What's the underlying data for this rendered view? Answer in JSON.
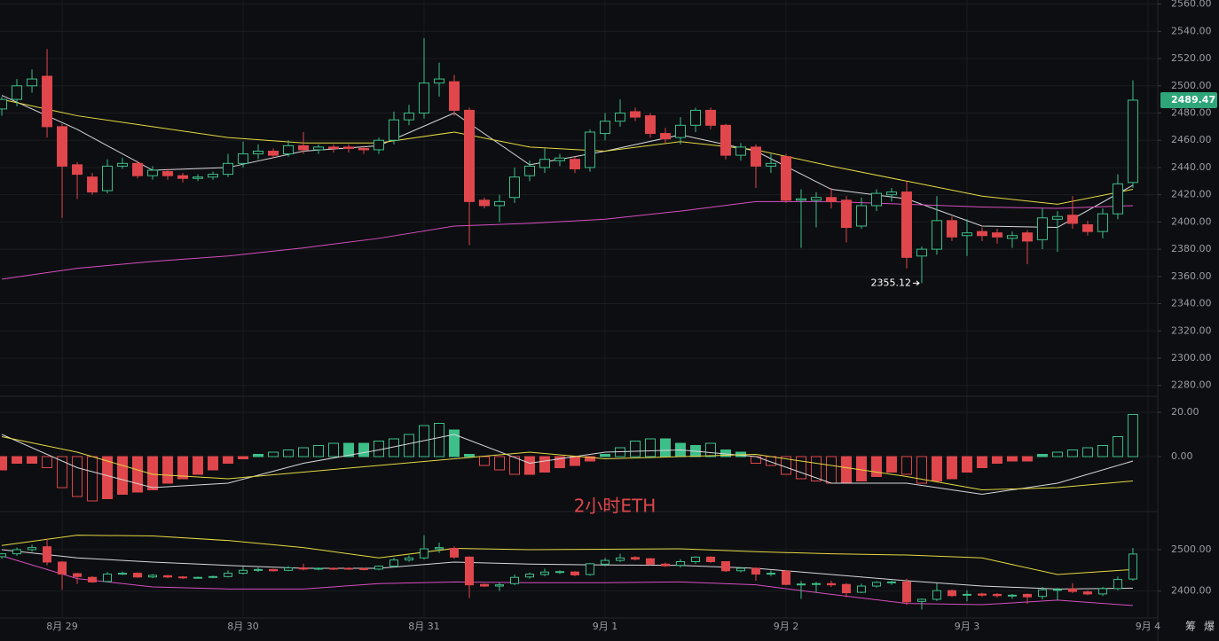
{
  "chart_data": {
    "type": "candlestick",
    "up_color": "#3dbf8a",
    "down_color": "#e0474c",
    "open": [
      2483,
      2490,
      2500,
      2507,
      2470,
      2442,
      2433,
      2423,
      2441,
      2443,
      2434,
      2437,
      2434,
      2432,
      2433,
      2435,
      2443,
      2450,
      2452,
      2450,
      2456,
      2453,
      2455,
      2455,
      2454,
      2453,
      2460,
      2475,
      2480,
      2502,
      2503,
      2482,
      2416,
      2412,
      2418,
      2434,
      2440,
      2445,
      2446,
      2440,
      2465,
      2474,
      2481,
      2478,
      2465,
      2462,
      2471,
      2482,
      2471,
      2449,
      2455,
      2441,
      2448,
      2416,
      2416,
      2418,
      2416,
      2397,
      2412,
      2420,
      2422,
      2375,
      2380,
      2401,
      2390,
      2393,
      2392,
      2388,
      2392,
      2387,
      2402,
      2405,
      2398,
      2393,
      2406,
      2429
    ],
    "high": [
      2492,
      2505,
      2512,
      2527,
      2472,
      2444,
      2436,
      2446,
      2447,
      2445,
      2441,
      2439,
      2436,
      2435,
      2437,
      2450,
      2459,
      2457,
      2454,
      2460,
      2466,
      2457,
      2457,
      2457,
      2456,
      2462,
      2481,
      2486,
      2535,
      2517,
      2508,
      2484,
      2418,
      2420,
      2440,
      2445,
      2454,
      2450,
      2448,
      2468,
      2480,
      2490,
      2484,
      2480,
      2469,
      2477,
      2484,
      2484,
      2472,
      2458,
      2457,
      2450,
      2450,
      2424,
      2422,
      2425,
      2419,
      2418,
      2424,
      2425,
      2430,
      2382,
      2419,
      2404,
      2402,
      2396,
      2395,
      2393,
      2394,
      2410,
      2408,
      2419,
      2401,
      2410,
      2435,
      2504
    ],
    "low": [
      2478,
      2485,
      2495,
      2462,
      2403,
      2417,
      2420,
      2421,
      2439,
      2432,
      2431,
      2431,
      2429,
      2430,
      2431,
      2433,
      2440,
      2446,
      2447,
      2448,
      2450,
      2450,
      2451,
      2451,
      2450,
      2450,
      2457,
      2471,
      2476,
      2492,
      2478,
      2383,
      2410,
      2400,
      2414,
      2430,
      2436,
      2441,
      2436,
      2437,
      2460,
      2470,
      2474,
      2462,
      2458,
      2457,
      2466,
      2468,
      2446,
      2445,
      2425,
      2436,
      2414,
      2381,
      2396,
      2410,
      2385,
      2395,
      2408,
      2415,
      2366,
      2355.12,
      2376,
      2386,
      2375,
      2386,
      2384,
      2381,
      2369,
      2380,
      2378,
      2395,
      2390,
      2388,
      2402,
      2425
    ],
    "close": [
      2490,
      2500,
      2505,
      2470,
      2441,
      2435,
      2422,
      2441,
      2443,
      2434,
      2438,
      2434,
      2432,
      2433,
      2435,
      2443,
      2450,
      2452,
      2449,
      2456,
      2453,
      2455,
      2454,
      2454,
      2453,
      2460,
      2475,
      2480,
      2502,
      2505,
      2482,
      2415,
      2412,
      2415,
      2433,
      2441,
      2446,
      2447,
      2439,
      2466,
      2474,
      2480,
      2477,
      2465,
      2461,
      2471,
      2482,
      2471,
      2449,
      2455,
      2441,
      2443,
      2416,
      2417,
      2418,
      2415,
      2396,
      2412,
      2421,
      2422,
      2374,
      2380,
      2401,
      2389,
      2392,
      2390,
      2389,
      2390,
      2386,
      2403,
      2404,
      2399,
      2393,
      2406,
      2428,
      2489.47
    ],
    "xlim": [
      -0.12,
      76.65
    ],
    "xticks": [
      {
        "value": 4,
        "label": "8月 29"
      },
      {
        "value": 16,
        "label": "8月 30"
      },
      {
        "value": 28,
        "label": "8月 31"
      },
      {
        "value": 40,
        "label": "9月 1"
      },
      {
        "value": 52,
        "label": "9月 2"
      },
      {
        "value": 64,
        "label": "9月 3"
      },
      {
        "value": 76,
        "label": "9月 4"
      }
    ],
    "ylim": [
      2272,
      2563
    ],
    "yticks": [
      {
        "value": 2560,
        "label": "2560.00"
      },
      {
        "value": 2540,
        "label": "2540.00"
      },
      {
        "value": 2520,
        "label": "2520.00"
      },
      {
        "value": 2500,
        "label": "2500.00"
      },
      {
        "value": 2480,
        "label": "2480.00"
      },
      {
        "value": 2460,
        "label": "2460.00"
      },
      {
        "value": 2440,
        "label": "2440.00"
      },
      {
        "value": 2420,
        "label": "2420.00"
      },
      {
        "value": 2400,
        "label": "2400.00"
      },
      {
        "value": 2380,
        "label": "2380.00"
      },
      {
        "value": 2360,
        "label": "2360.00"
      },
      {
        "value": 2340,
        "label": "2340.00"
      },
      {
        "value": 2320,
        "label": "2320.00"
      },
      {
        "value": 2300,
        "label": "2300.00"
      },
      {
        "value": 2280,
        "label": "2280.00"
      }
    ],
    "ma": [
      {
        "color": "#d8d8dc",
        "x": [
          0,
          5,
          10,
          15,
          20,
          25,
          30,
          35,
          40,
          45,
          50,
          55,
          60,
          65,
          70,
          75
        ],
        "values": [
          2493,
          2468,
          2438,
          2440,
          2452,
          2456,
          2480,
          2442,
          2452,
          2464,
          2452,
          2424,
          2417,
          2397,
          2396,
          2427
        ]
      },
      {
        "color": "#e5d944",
        "x": [
          0,
          5,
          10,
          15,
          20,
          25,
          30,
          35,
          40,
          45,
          50,
          55,
          60,
          65,
          70,
          75
        ],
        "values": [
          2490,
          2478,
          2470,
          2462,
          2458,
          2458,
          2466,
          2455,
          2452,
          2459,
          2453,
          2441,
          2430,
          2419,
          2413,
          2424
        ]
      },
      {
        "color": "#d64fc0",
        "x": [
          0,
          5,
          10,
          15,
          20,
          25,
          30,
          35,
          40,
          45,
          50,
          55,
          60,
          65,
          70,
          75
        ],
        "values": [
          2358,
          2366,
          2371,
          2375,
          2381,
          2388,
          2397,
          2399,
          2402,
          2408,
          2415,
          2415,
          2413,
          2411,
          2410,
          2412
        ]
      }
    ],
    "macd": {
      "ylim": [
        -24.8,
        27.2
      ],
      "yticks": [
        {
          "value": 20,
          "label": "20.00"
        },
        {
          "value": 0,
          "label": "0.00"
        }
      ],
      "histogram": [
        -6,
        -3,
        -3,
        -5,
        -14,
        -18,
        -20,
        -19,
        -17,
        -16,
        -15,
        -12,
        -10,
        -8,
        -6,
        -3,
        -1,
        1,
        2,
        3,
        4,
        5,
        6,
        6,
        6,
        7,
        8,
        10,
        14,
        15,
        12,
        1,
        -4,
        -6,
        -8,
        -8,
        -7,
        -5,
        -4,
        -2,
        1,
        4,
        7,
        8,
        8,
        6,
        5,
        6,
        3,
        2,
        -3,
        -4,
        -8,
        -10,
        -11,
        -12,
        -12,
        -11,
        -9,
        -7,
        -8,
        -12,
        -11,
        -10,
        -7,
        -5,
        -3,
        -2,
        -2,
        1,
        2,
        3,
        4,
        5,
        9,
        19
      ],
      "lines": [
        {
          "color": "#d8d8dc",
          "x": [
            0,
            5,
            10,
            15,
            20,
            25,
            30,
            35,
            40,
            45,
            50,
            55,
            60,
            65,
            70,
            75
          ],
          "values": [
            10,
            -5,
            -14,
            -12,
            -3,
            3,
            10,
            -3,
            2,
            3,
            0,
            -12,
            -12,
            -17,
            -12,
            -2
          ]
        },
        {
          "color": "#e5d944",
          "x": [
            0,
            5,
            10,
            15,
            20,
            25,
            30,
            35,
            40,
            45,
            50,
            55,
            60,
            65,
            70,
            75
          ],
          "values": [
            9,
            2,
            -8,
            -10,
            -7,
            -4,
            -1,
            2,
            -1,
            0,
            1,
            -4,
            -9,
            -15,
            -14,
            -11
          ]
        }
      ]
    },
    "boll": {
      "ylim": [
        2335,
        2592
      ],
      "yticks": [
        {
          "value": 2500,
          "label": "2500.00"
        },
        {
          "value": 2400,
          "label": "2400.00"
        }
      ],
      "lines": [
        {
          "color": "#e5d944",
          "x": [
            0,
            5,
            10,
            15,
            20,
            25,
            30,
            35,
            40,
            45,
            50,
            55,
            60,
            65,
            70,
            75
          ],
          "values": [
            2510,
            2535,
            2533,
            2522,
            2505,
            2480,
            2503,
            2500,
            2501,
            2502,
            2495,
            2490,
            2487,
            2480,
            2440,
            2452
          ]
        },
        {
          "color": "#d8d8dc",
          "x": [
            0,
            5,
            10,
            15,
            20,
            25,
            30,
            35,
            40,
            45,
            50,
            55,
            60,
            65,
            70,
            75
          ],
          "values": [
            2500,
            2480,
            2470,
            2462,
            2455,
            2455,
            2470,
            2465,
            2463,
            2462,
            2455,
            2440,
            2425,
            2412,
            2405,
            2407
          ]
        },
        {
          "color": "#d64fc0",
          "x": [
            0,
            5,
            10,
            15,
            20,
            25,
            30,
            35,
            40,
            45,
            50,
            55,
            60,
            65,
            70,
            75
          ],
          "values": [
            2485,
            2430,
            2410,
            2405,
            2405,
            2418,
            2422,
            2420,
            2420,
            2422,
            2415,
            2392,
            2370,
            2367,
            2378,
            2365
          ]
        }
      ]
    },
    "watermark": "2小时ETH",
    "toolbar": [
      "筹",
      "爆"
    ]
  }
}
